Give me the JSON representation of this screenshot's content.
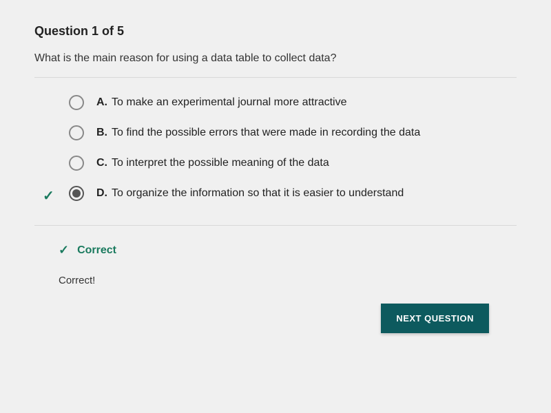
{
  "header": {
    "question_number": "Question 1 of 5"
  },
  "question": {
    "text": "What is the main reason for using a data table to collect data?"
  },
  "options": [
    {
      "letter": "A.",
      "text": "To make an experimental journal more attractive",
      "selected": false,
      "correct_mark": false
    },
    {
      "letter": "B.",
      "text": "To find the possible errors that were made in recording the data",
      "selected": false,
      "correct_mark": false
    },
    {
      "letter": "C.",
      "text": "To interpret the possible meaning of the data",
      "selected": false,
      "correct_mark": false
    },
    {
      "letter": "D.",
      "text": "To organize the information so that it is easier to understand",
      "selected": true,
      "correct_mark": true
    }
  ],
  "feedback": {
    "status_label": "Correct",
    "message": "Correct!"
  },
  "buttons": {
    "next": "NEXT QUESTION"
  },
  "colors": {
    "accent_green": "#1a7a5e",
    "button_bg": "#0d5a5e",
    "button_text": "#ffffff",
    "page_bg": "#f0f0f0",
    "divider": "#d8d8d8",
    "radio_border": "#888888"
  }
}
